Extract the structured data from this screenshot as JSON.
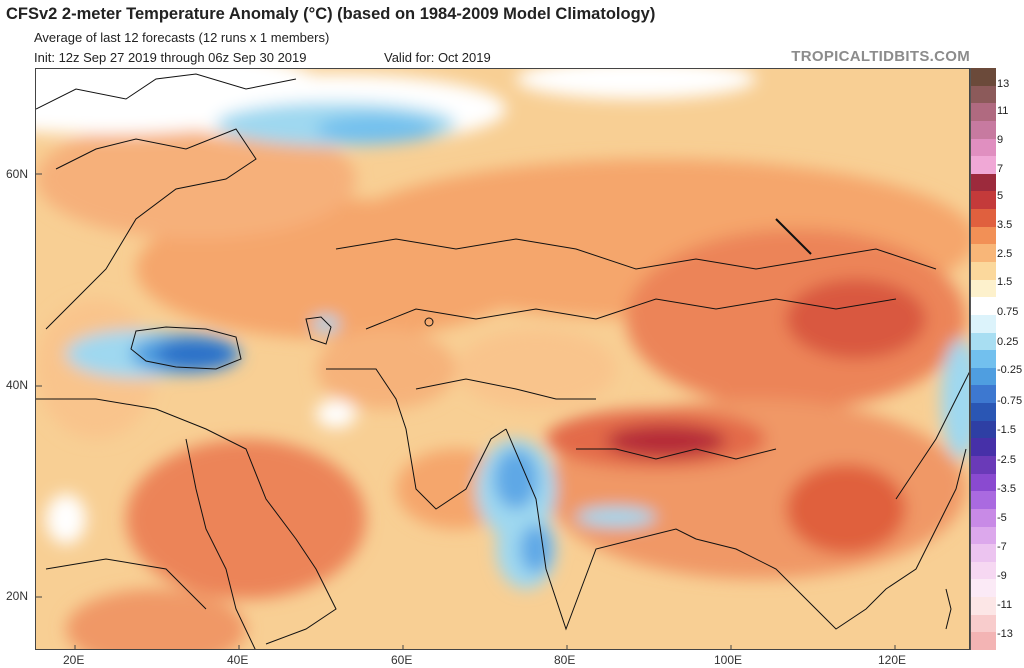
{
  "title": "CFSv2 2-meter Temperature Anomaly (°C) (based on 1984-2009 Model Climatology)",
  "subtitle": "Average of last 12 forecasts (12 runs x 1 members)",
  "init_text": "Init: 12z Sep 27 2019 through 06z Sep 30 2019",
  "valid_text": "Valid for: Oct 2019",
  "brand": "TROPICALTIDBITS.COM",
  "map": {
    "lat_labels": [
      "60N",
      "40N",
      "20N"
    ],
    "lon_labels": [
      "20E",
      "40E",
      "60E",
      "80E",
      "100E",
      "120E"
    ],
    "colors": {
      "ocean_sea_base": "#f8d39a",
      "warm_mid": "#f5a66c",
      "warm_strong": "#e36a48",
      "warm_peak": "#b52a38",
      "cold_light": "#9fd8f0",
      "cold_mid": "#5fa8e6",
      "cold_strong": "#2c6fc7"
    }
  },
  "legend": {
    "labels": [
      "13",
      "11",
      "9",
      "7",
      "5",
      "3.5",
      "2.5",
      "1.5",
      "0.75",
      "0.25",
      "-0.25",
      "-0.75",
      "-1.5",
      "-2.5",
      "-3.5",
      "-5",
      "-7",
      "-9",
      "-11",
      "-13"
    ],
    "colors": [
      "#6b4a3a",
      "#8c5a5a",
      "#b06a80",
      "#c77aa0",
      "#e08fc0",
      "#f0a8d6",
      "#9c2a3c",
      "#c43a3a",
      "#e0603e",
      "#f29056",
      "#f8b678",
      "#fbd89c",
      "#fdf1cc",
      "#ffffff",
      "#dcf3fb",
      "#a8def2",
      "#72c0ee",
      "#4f9ee0",
      "#3d78d0",
      "#2a56b4",
      "#2e3fa4",
      "#4630a8",
      "#6a3ab8",
      "#8a4ad0",
      "#aa6ae0",
      "#c88ae6",
      "#dca8ec",
      "#ecc4f0",
      "#f6d8f2",
      "#fbeaf6",
      "#fce6e6",
      "#f8cccc",
      "#f3b4b4"
    ]
  }
}
